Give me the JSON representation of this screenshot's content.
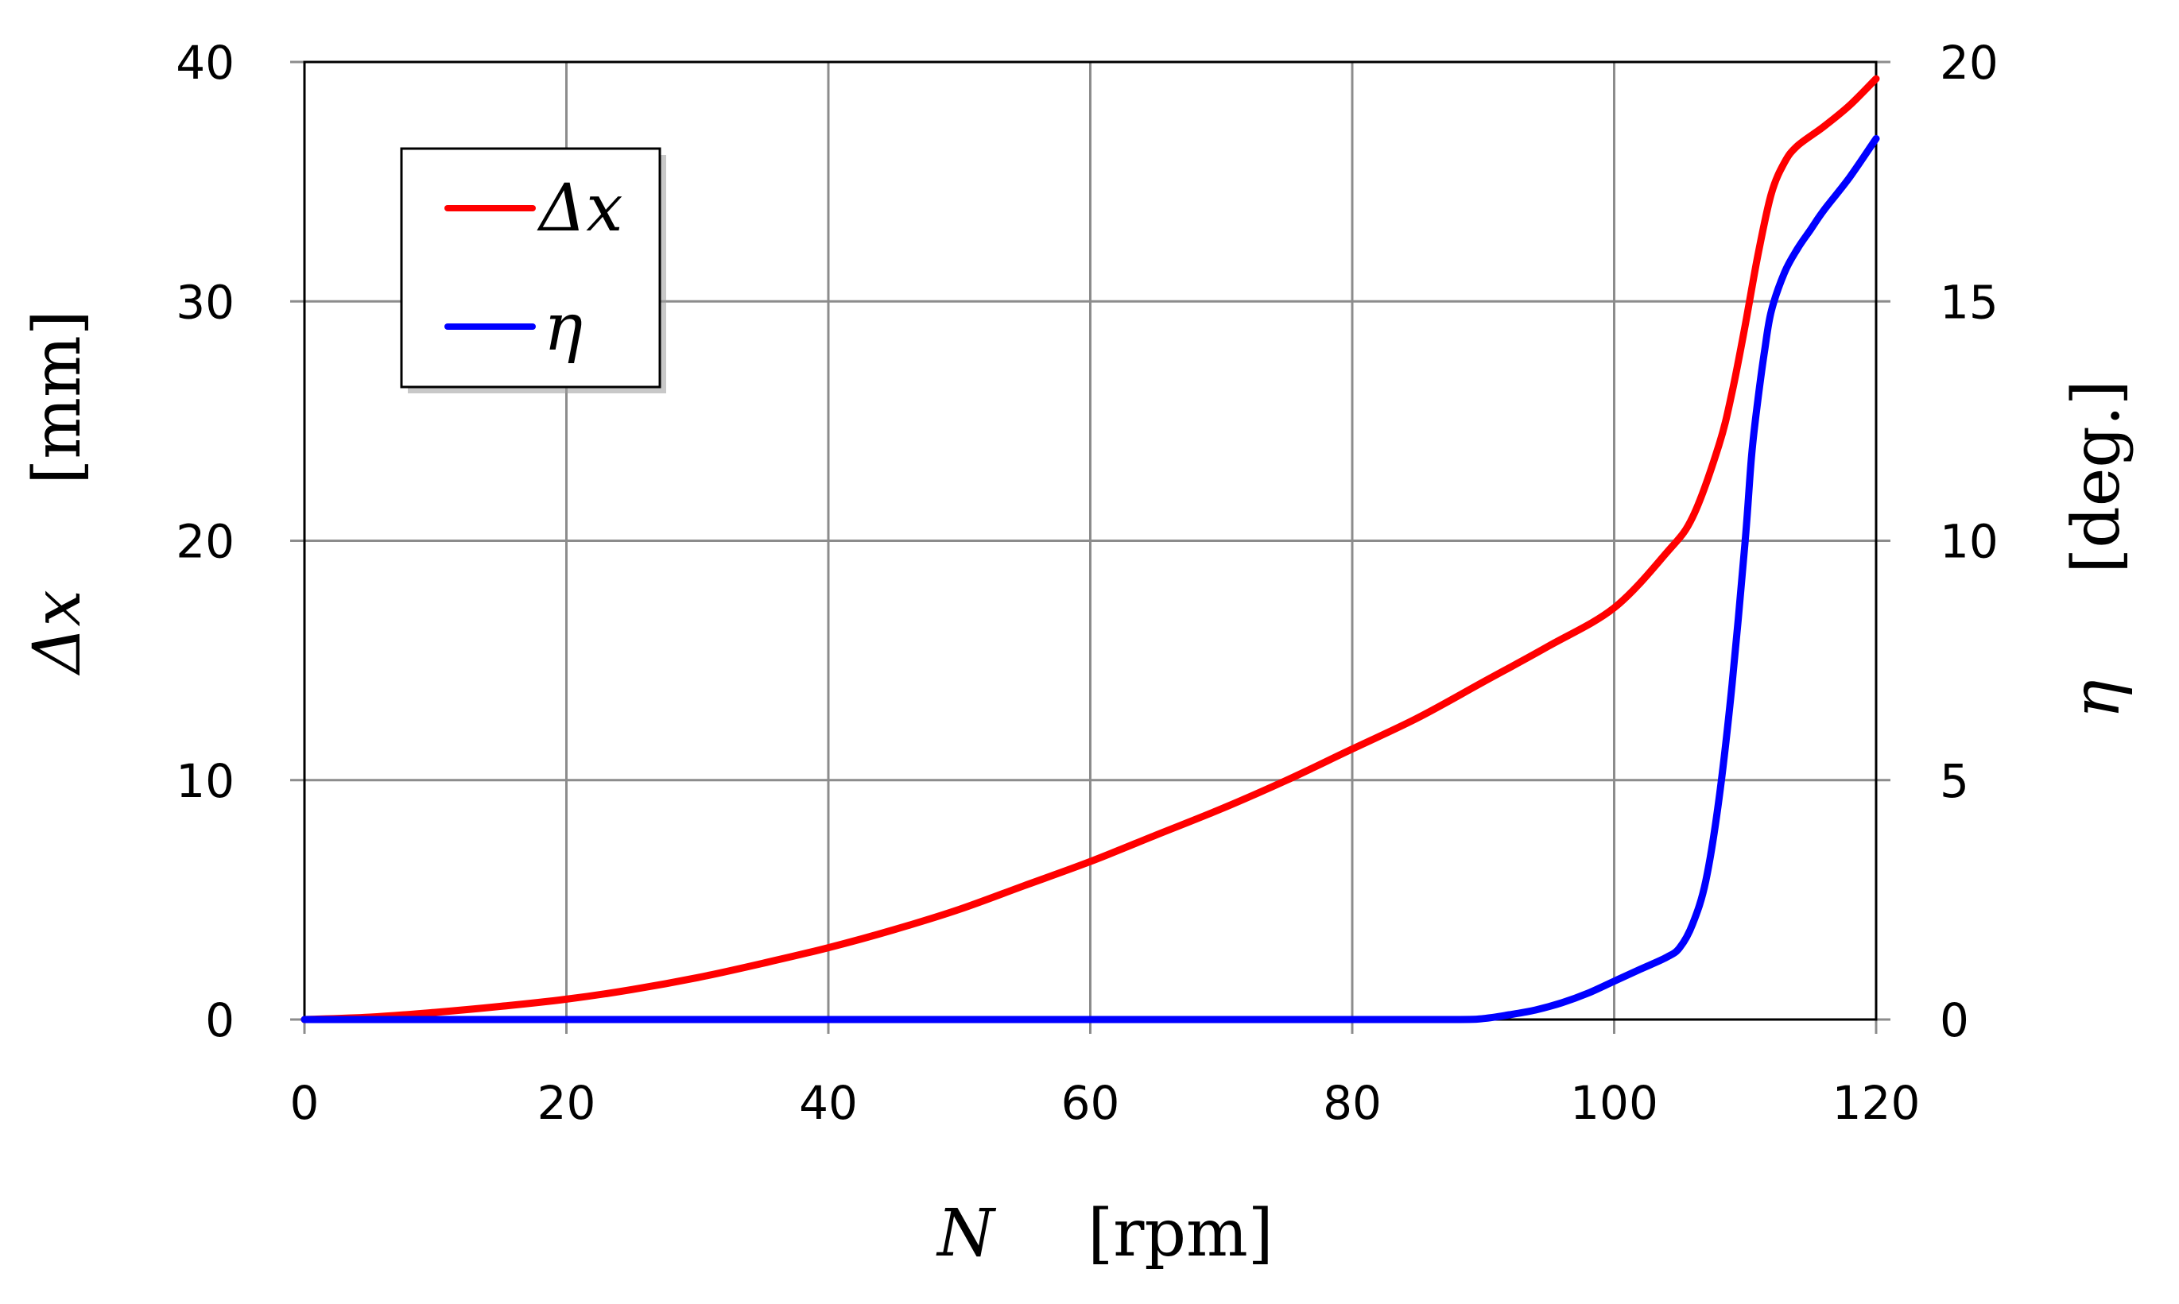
{
  "chart_data": {
    "type": "line",
    "x_axis": {
      "symbol": "N",
      "unit": "[rpm]",
      "range": [
        0,
        120
      ],
      "ticks": [
        "0",
        "20",
        "40",
        "60",
        "80",
        "100",
        "120"
      ]
    },
    "y_left_axis": {
      "symbol": "Δx",
      "unit": "[mm]",
      "range": [
        0,
        40
      ],
      "ticks": [
        "0",
        "10",
        "20",
        "30",
        "40"
      ]
    },
    "y_right_axis": {
      "symbol": "η",
      "unit": "[deg.]",
      "range": [
        0,
        20
      ],
      "ticks": [
        "0",
        "5",
        "10",
        "15",
        "20"
      ]
    },
    "grid": true,
    "legend": {
      "placement": "top-left"
    },
    "series": [
      {
        "name": "Δx",
        "axis": "left",
        "color": "#ff0000",
        "x": [
          0,
          5,
          10,
          15,
          20,
          25,
          30,
          35,
          40,
          45,
          50,
          55,
          60,
          65,
          70,
          75,
          80,
          85,
          90,
          95,
          100,
          104,
          106,
          108,
          109,
          110,
          111,
          112,
          113,
          114,
          116,
          118,
          120
        ],
        "y": [
          0,
          0.1,
          0.3,
          0.55,
          0.85,
          1.25,
          1.75,
          2.35,
          3.0,
          3.75,
          4.6,
          5.6,
          6.6,
          7.7,
          8.8,
          10.0,
          11.3,
          12.6,
          14.1,
          15.6,
          17.2,
          19.5,
          21.0,
          24.0,
          26.2,
          29.0,
          32.0,
          34.5,
          35.8,
          36.5,
          37.3,
          38.2,
          39.3
        ]
      },
      {
        "name": "η",
        "axis": "right",
        "color": "#0000ff",
        "x": [
          0,
          20,
          40,
          60,
          80,
          88,
          90,
          92,
          94,
          96,
          98,
          100,
          102,
          104,
          105,
          106,
          107,
          108,
          109,
          110,
          110.5,
          111,
          111.5,
          112,
          113,
          114,
          115,
          116,
          118,
          120
        ],
        "y": [
          0,
          0,
          0,
          0,
          0,
          0,
          0.02,
          0.1,
          0.2,
          0.35,
          0.55,
          0.8,
          1.05,
          1.3,
          1.5,
          2.0,
          2.9,
          4.6,
          7.0,
          10.0,
          11.8,
          13.0,
          14.0,
          14.8,
          15.6,
          16.1,
          16.5,
          16.9,
          17.6,
          18.4
        ]
      }
    ]
  }
}
